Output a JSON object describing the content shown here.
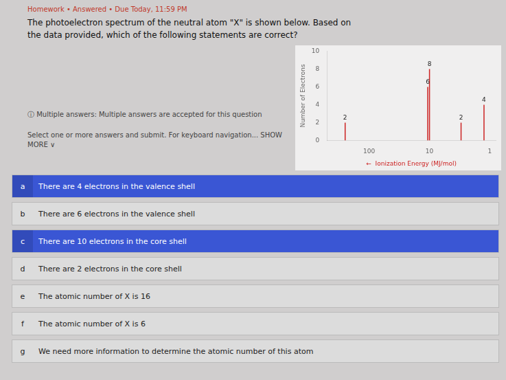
{
  "chart_data": {
    "type": "stem",
    "x": [
      250,
      10.7,
      10.0,
      3.0,
      1.25
    ],
    "values": [
      2,
      6,
      8,
      2,
      4
    ],
    "color": "#cc2222",
    "xlabel": "←  Ionization Energy (MJ/mol)",
    "ylabel": "Number of Electrons",
    "log": "x",
    "xlim": [
      500,
      0.8
    ],
    "xticks": [
      1,
      10,
      100
    ],
    "ylim": [
      0,
      10
    ],
    "yticks": [
      0,
      2,
      4,
      6,
      8,
      10
    ],
    "grid": false,
    "data_labels": true,
    "annotations": [
      "Homework  •  Answered  •  Due Today, 11:59 PM",
      "The photoelectron spectrum of the neutral atom \"X\" is shown below.  Based on\nthe data provided, which of the following statements are correct?",
      "ⓘ  Multiple answers:  Multiple answers are accepted for this question",
      "Select one or more answers and submit. For keyboard navigation...  SHOW MORE ∨",
      {
        "label": "a",
        "text": "There are 4 electrons in the valence shell",
        "color": "#3a56d4"
      },
      {
        "label": "b",
        "text": "There are 6 electrons in the valence shell"
      },
      {
        "label": "c",
        "text": "There are 10 electrons in the core shell",
        "color": "#3a56d4"
      },
      {
        "label": "d",
        "text": "There are 2 electrons in the core shell"
      },
      {
        "label": "e",
        "text": "The atomic number of X is 16"
      },
      {
        "label": "f",
        "text": "The atomic number of X is 6"
      },
      {
        "label": "g",
        "text": "We need more information to determine the atomic number of this atom"
      }
    ]
  }
}
